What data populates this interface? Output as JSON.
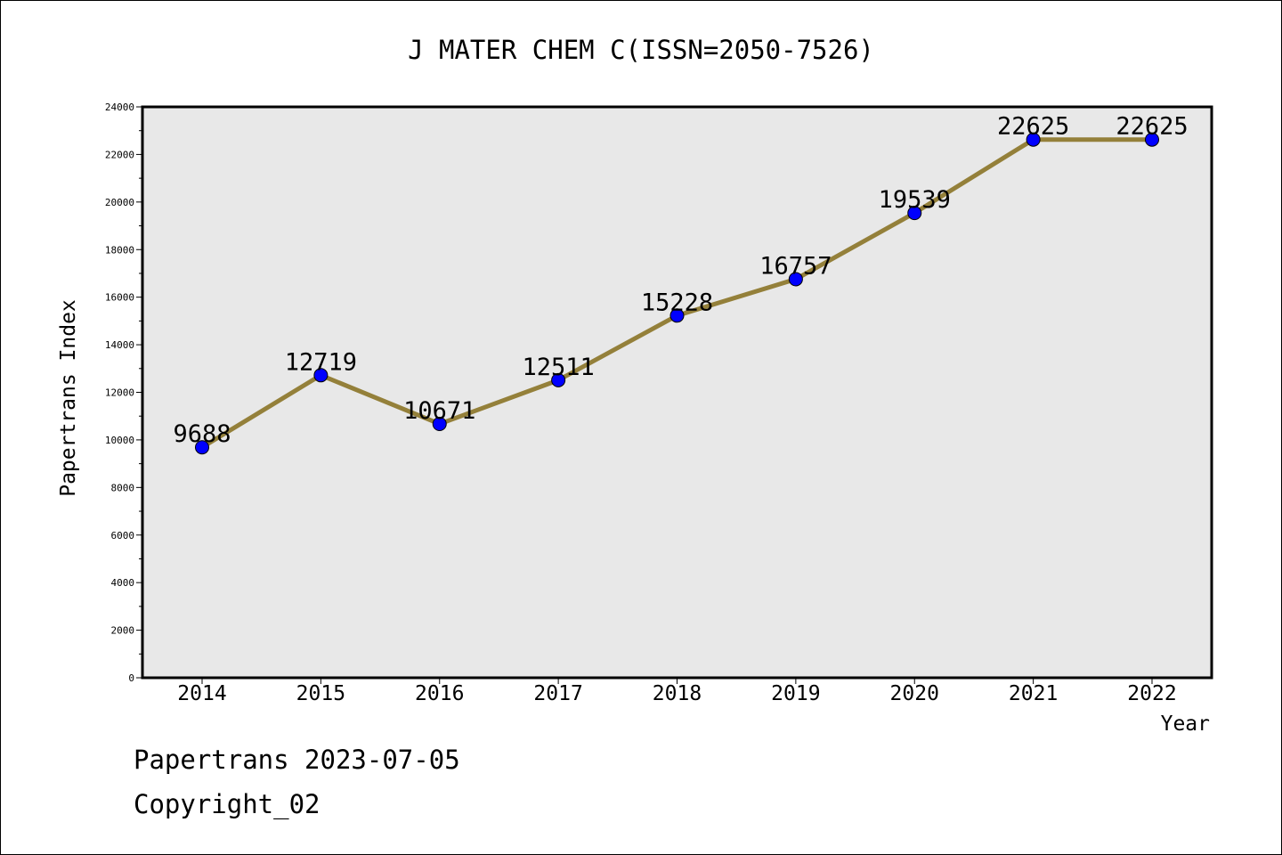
{
  "chart_data": {
    "type": "line",
    "title": "J MATER CHEM C(ISSN=2050-7526)",
    "xlabel": "Year",
    "ylabel": "Papertrans Index",
    "categories": [
      "2014",
      "2015",
      "2016",
      "2017",
      "2018",
      "2019",
      "2020",
      "2021",
      "2022"
    ],
    "values": [
      9688,
      12719,
      10671,
      12511,
      15228,
      16757,
      19539,
      22625,
      22625
    ],
    "data_labels": [
      "9688",
      "12719",
      "10671",
      "12511",
      "15228",
      "16757",
      "19539",
      "22625",
      "22625"
    ],
    "ylim": [
      0,
      24000
    ],
    "yticks": [
      0,
      2000,
      4000,
      6000,
      8000,
      10000,
      12000,
      14000,
      16000,
      18000,
      20000,
      22000,
      24000
    ],
    "ytick_labels": [
      "0",
      "2000",
      "4000",
      "6000",
      "8000",
      "10000",
      "12000",
      "14000",
      "16000",
      "18000",
      "20000",
      "22000",
      "24000"
    ],
    "grid": false,
    "line_color": "#94803a",
    "marker_color": "#0000ff",
    "plot_background": "#e8e8e8"
  },
  "footer": {
    "source": "Papertrans 2023-07-05",
    "copyright": "Copyright_02"
  }
}
